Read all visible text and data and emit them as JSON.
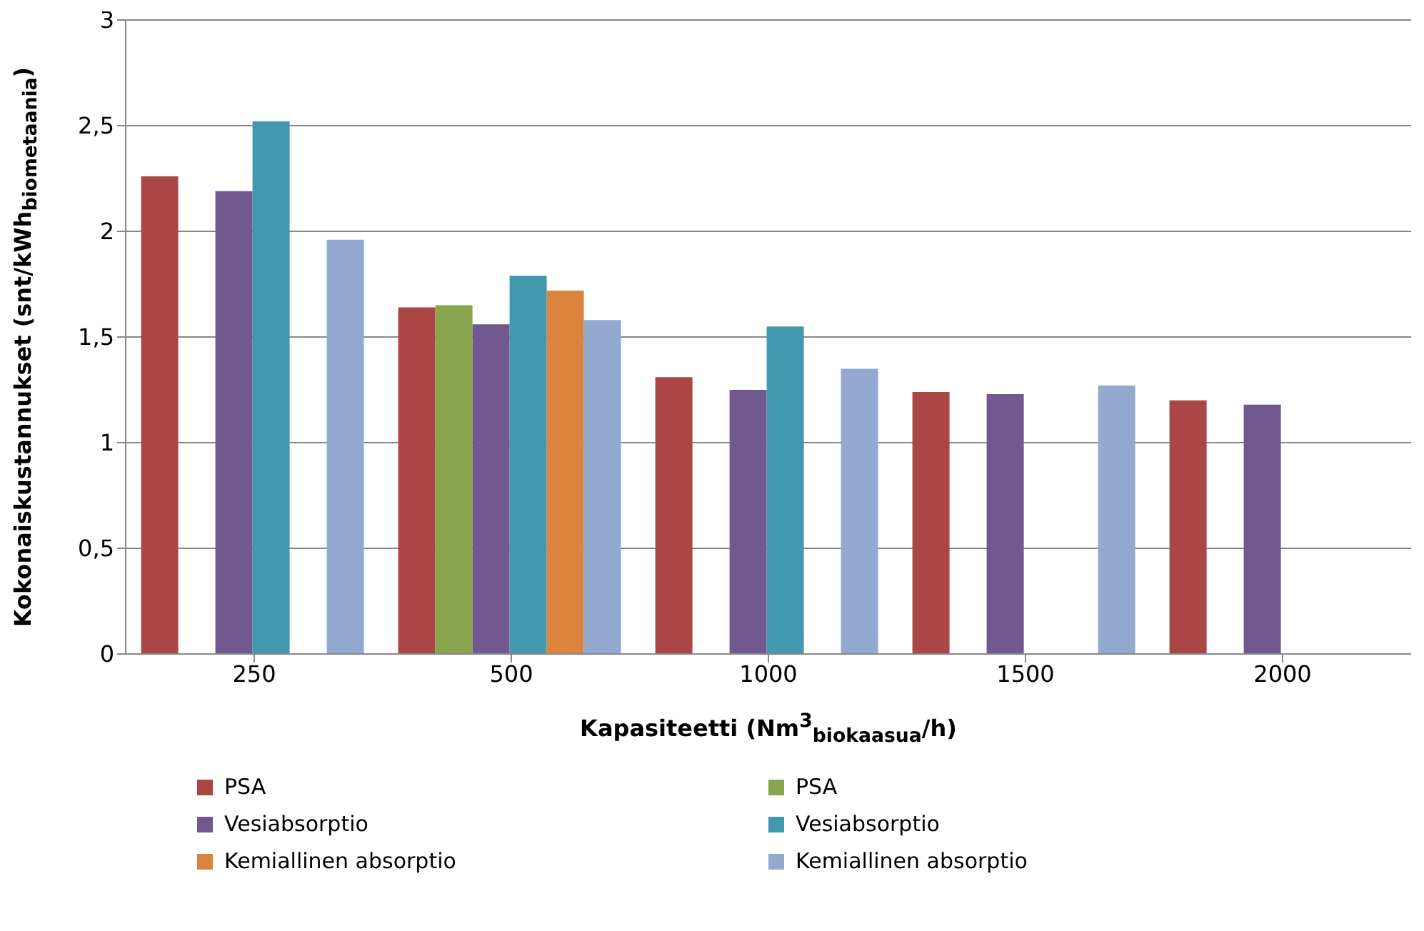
{
  "chart_data": {
    "type": "bar",
    "xlabel": "Kapasiteetti (Nm$^{3}$$_{biokaasua}$/h)",
    "ylabel": "Kokonaiskustannukset (snt/kWh$_{biometaania}$)",
    "categories": [
      "250",
      "500",
      "1000",
      "1500",
      "2000"
    ],
    "series": [
      {
        "name": "PSA",
        "color": "#aa4643",
        "values": [
          2.26,
          1.64,
          1.31,
          1.24,
          1.2
        ]
      },
      {
        "name": "PSA",
        "color": "#89a54e",
        "values": [
          null,
          1.65,
          null,
          null,
          null
        ]
      },
      {
        "name": "Vesiabsorptio",
        "color": "#71588f",
        "values": [
          2.19,
          1.56,
          1.25,
          1.23,
          1.18
        ]
      },
      {
        "name": "Vesiabsorptio",
        "color": "#4198af",
        "values": [
          2.52,
          1.79,
          1.55,
          null,
          null
        ]
      },
      {
        "name": "Kemiallinen absorptio",
        "color": "#db843d",
        "values": [
          null,
          1.72,
          null,
          null,
          null
        ]
      },
      {
        "name": "Kemiallinen absorptio",
        "color": "#93a9cf",
        "values": [
          1.96,
          1.58,
          1.35,
          1.27,
          null
        ]
      }
    ],
    "ylim": [
      0,
      3
    ],
    "yticks": [
      0,
      {
        "value": 0.5,
        "label": "0,5"
      },
      1,
      {
        "value": 1.5,
        "label": "1,5"
      },
      2,
      {
        "value": 2.5,
        "label": "2,5"
      },
      3
    ],
    "grid": "y",
    "legend": "bottom"
  }
}
